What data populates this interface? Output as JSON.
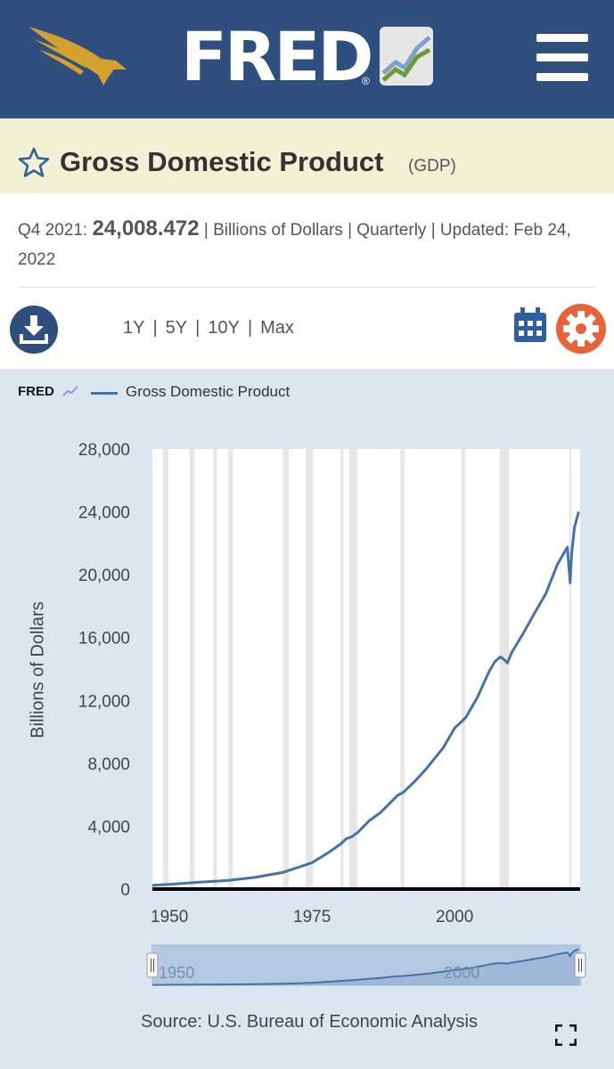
{
  "header": {
    "logo_text": "FRED",
    "logo_reg": "®"
  },
  "series": {
    "title": "Gross Domestic Product",
    "id": "(GDP)",
    "period": "Q4 2021:",
    "value": "24,008.472",
    "units": "| Billions of Dollars | Quarterly | Updated: Feb 24, 2022"
  },
  "controls": {
    "ranges": [
      "1Y",
      "5Y",
      "10Y",
      "Max"
    ]
  },
  "chart": {
    "mini_logo": "FRED",
    "legend": "Gross Domestic Product",
    "source": "Source: U.S. Bureau of Economic Analysis",
    "navigator_labels": [
      "1950",
      "2000"
    ]
  },
  "colors": {
    "header": "#2f4f7f",
    "title_bar": "#f3f1d5",
    "chart_bg": "#dbe6f0",
    "line": "#4572a7",
    "recession": "#e6e6e6",
    "gear": "#e8633a"
  },
  "chart_data": {
    "type": "line",
    "ylabel": "Billions of Dollars",
    "ylim": [
      0,
      28000
    ],
    "xlim": [
      1947,
      2022
    ],
    "yticks": [
      "0",
      "4,000",
      "8,000",
      "12,000",
      "16,000",
      "20,000",
      "24,000",
      "28,000"
    ],
    "xticks": [
      "1950",
      "1975",
      "2000"
    ],
    "recessions": [
      [
        1948.9,
        1949.8
      ],
      [
        1953.5,
        1954.4
      ],
      [
        1957.7,
        1958.3
      ],
      [
        1960.3,
        1961.1
      ],
      [
        1969.9,
        1970.9
      ],
      [
        1973.9,
        1975.2
      ],
      [
        1980.0,
        1980.5
      ],
      [
        1981.5,
        1982.9
      ],
      [
        1990.5,
        1991.2
      ],
      [
        2001.2,
        2001.9
      ],
      [
        2007.9,
        2009.5
      ],
      [
        2020.1,
        2020.4
      ]
    ],
    "series": [
      {
        "name": "Gross Domestic Product",
        "x": [
          1947,
          1950,
          1955,
          1960,
          1965,
          1970,
          1975,
          1978,
          1980,
          1981,
          1982,
          1983,
          1985,
          1987,
          1990,
          1991,
          1993,
          1995,
          1998,
          2000,
          2001,
          2002,
          2004,
          2006,
          2007,
          2008,
          2008.75,
          2009.25,
          2010,
          2012,
          2014,
          2016,
          2018,
          2019.75,
          2020.25,
          2020.5,
          2021,
          2021.75
        ],
        "y": [
          243,
          300,
          430,
          540,
          740,
          1070,
          1680,
          2350,
          2860,
          3200,
          3340,
          3600,
          4340,
          4870,
          5960,
          6150,
          6850,
          7640,
          8990,
          10250,
          10580,
          10940,
          12210,
          13810,
          14450,
          14770,
          14580,
          14380,
          15050,
          16250,
          17550,
          18800,
          20650,
          21750,
          19480,
          21300,
          23000,
          24008
        ]
      }
    ]
  }
}
